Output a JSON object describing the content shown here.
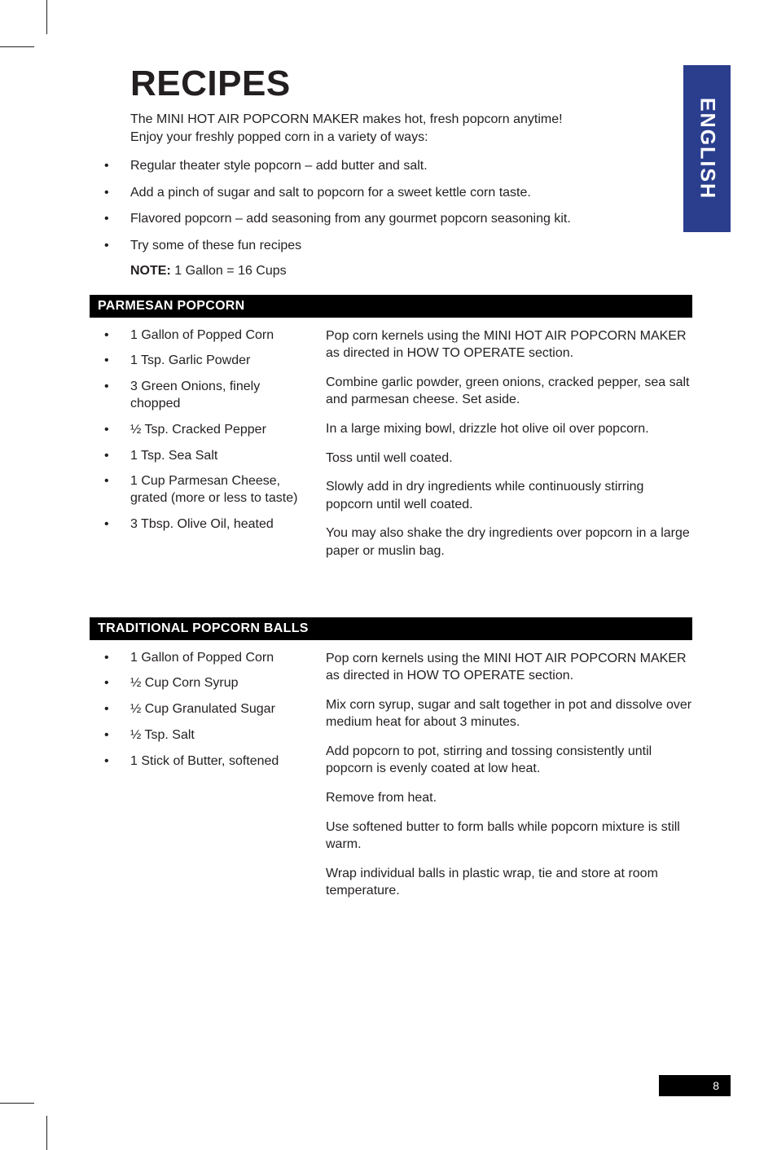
{
  "side_tab": "ENGLISH",
  "title": "RECIPES",
  "intro": "The MINI HOT AIR POPCORN MAKER makes hot, fresh popcorn anytime! Enjoy your freshly popped corn in a variety of ways:",
  "top_bullets": [
    "Regular theater style popcorn – add butter and salt.",
    "Add a pinch of sugar and salt to popcorn for a sweet kettle corn taste.",
    "Flavored popcorn – add seasoning from any gourmet popcorn seasoning kit.",
    "Try some of these fun recipes"
  ],
  "note_label": "NOTE:",
  "note_text": " 1 Gallon = 16 Cups",
  "recipes": [
    {
      "header": "PARMESAN POPCORN",
      "ingredients": [
        "1 Gallon of Popped Corn",
        "1 Tsp. Garlic Powder",
        "3 Green Onions, finely chopped",
        "½ Tsp. Cracked Pepper",
        "1 Tsp. Sea Salt",
        "1 Cup Parmesan Cheese, grated (more or less to taste)",
        "3 Tbsp. Olive Oil, heated"
      ],
      "steps": [
        "Pop corn kernels using the MINI HOT AIR POPCORN MAKER as directed in HOW TO OPERATE section.",
        "Combine garlic powder, green onions, cracked pepper, sea salt and parmesan cheese. Set aside.",
        "In a large mixing bowl, drizzle hot olive oil over popcorn.",
        "Toss until well coated.",
        "Slowly add in dry ingredients while continuously stirring popcorn until well coated.",
        "You may also shake the dry ingredients over popcorn in a large paper or muslin bag."
      ]
    },
    {
      "header": "TRADITIONAL POPCORN BALLS",
      "ingredients": [
        "1 Gallon of Popped Corn",
        "½ Cup Corn Syrup",
        "½ Cup Granulated Sugar",
        "½ Tsp. Salt",
        "1 Stick of Butter, softened"
      ],
      "steps": [
        "Pop corn kernels using the MINI HOT AIR POPCORN MAKER as directed in HOW TO OPERATE section.",
        "Mix corn syrup, sugar and salt together in pot and dissolve over medium heat for about 3 minutes.",
        "Add popcorn to pot, stirring and tossing consistently until popcorn is evenly coated at low heat.",
        "Remove from heat.",
        "Use softened butter to form balls while popcorn mixture is still warm.",
        "Wrap individual balls in plastic wrap, tie and store at room temperature."
      ]
    }
  ],
  "page_number": "8",
  "colors": {
    "tab_bg": "#2a3e8d",
    "tab_text": "#ffffff",
    "header_bg": "#000000",
    "header_text": "#ffffff",
    "body_text": "#231f20",
    "page_bg": "#ffffff"
  },
  "typography": {
    "title_size_pt": 33,
    "body_size_pt": 12,
    "header_size_pt": 12,
    "tab_size_pt": 19
  }
}
